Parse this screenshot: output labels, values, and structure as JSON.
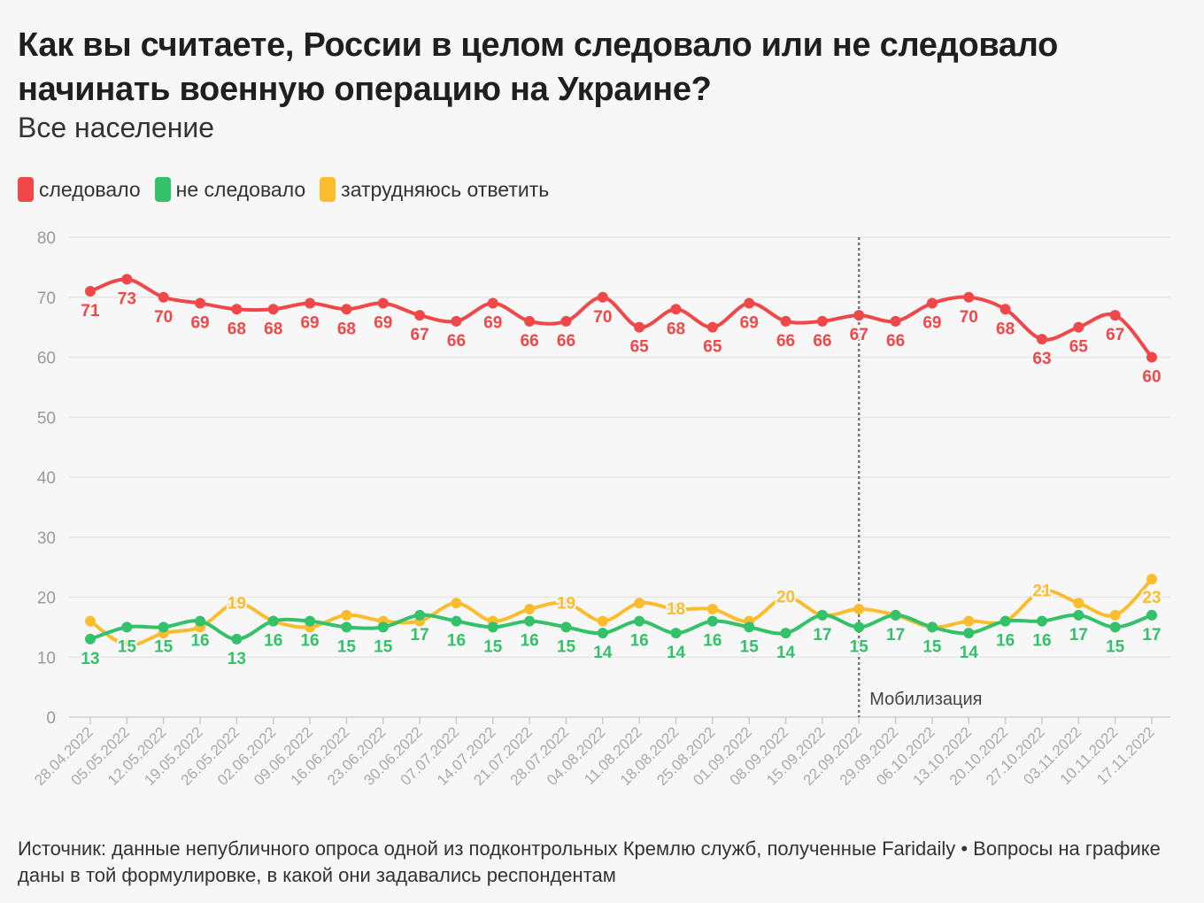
{
  "title": "Как вы считаете, России в целом следовало или не следовало начинать военную операцию на Украине?",
  "subtitle": "Все население",
  "legend": [
    {
      "label": "следовало",
      "color": "#f04848"
    },
    {
      "label": "не следовало",
      "color": "#33c16a"
    },
    {
      "label": "затрудняюсь ответить",
      "color": "#fbbd2e"
    }
  ],
  "footer": "Источник: данные непубличного опроса одной из подконтрольных Кремлю служб, полученные Faridaily • Вопросы на графике даны в той формулировке, в какой они задавались респондентам",
  "chart_data": {
    "type": "line",
    "title": "Как вы считаете, России в целом следовало или не следовало начинать военную операцию на Украине?",
    "subtitle": "Все население",
    "ylim": [
      0,
      80
    ],
    "yticks": [
      0,
      10,
      20,
      30,
      40,
      50,
      60,
      70,
      80
    ],
    "grid": true,
    "legend_position": "top-left",
    "x": [
      "28.04.2022",
      "05.05.2022",
      "12.05.2022",
      "19.05.2022",
      "26.05.2022",
      "02.06.2022",
      "09.06.2022",
      "16.06.2022",
      "23.06.2022",
      "30.06.2022",
      "07.07.2022",
      "14.07.2022",
      "21.07.2022",
      "28.07.2022",
      "04.08.2022",
      "11.08.2022",
      "18.08.2022",
      "25.08.2022",
      "01.09.2022",
      "08.09.2022",
      "15.09.2022",
      "22.09.2022",
      "29.09.2022",
      "06.10.2022",
      "13.10.2022",
      "20.10.2022",
      "27.10.2022",
      "03.11.2022",
      "10.11.2022",
      "17.11.2022"
    ],
    "series": [
      {
        "name": "следовало",
        "color": "#f04848",
        "values": [
          71,
          73,
          70,
          69,
          68,
          68,
          69,
          68,
          69,
          67,
          66,
          69,
          66,
          66,
          70,
          65,
          68,
          65,
          69,
          66,
          66,
          67,
          66,
          69,
          70,
          68,
          63,
          65,
          67,
          60
        ],
        "labeled": [
          0,
          1,
          2,
          3,
          4,
          5,
          6,
          7,
          8,
          9,
          10,
          11,
          12,
          13,
          14,
          15,
          16,
          17,
          18,
          19,
          20,
          21,
          22,
          23,
          24,
          25,
          26,
          27,
          28,
          29
        ]
      },
      {
        "name": "не следовало",
        "color": "#33c16a",
        "values": [
          13,
          15,
          15,
          16,
          13,
          16,
          16,
          15,
          15,
          17,
          16,
          15,
          16,
          15,
          14,
          16,
          14,
          16,
          15,
          14,
          17,
          15,
          17,
          15,
          14,
          16,
          16,
          17,
          15,
          17
        ],
        "labeled": [
          0,
          1,
          2,
          3,
          4,
          5,
          6,
          7,
          8,
          9,
          10,
          11,
          12,
          13,
          14,
          15,
          16,
          17,
          18,
          19,
          20,
          21,
          22,
          23,
          24,
          25,
          26,
          27,
          28,
          29
        ]
      },
      {
        "name": "затрудняюсь ответить",
        "color": "#fbbd2e",
        "values": [
          16,
          12,
          14,
          15,
          19,
          16,
          15,
          17,
          16,
          16,
          19,
          16,
          18,
          19,
          16,
          19,
          18,
          18,
          16,
          20,
          17,
          18,
          17,
          15,
          16,
          16,
          21,
          19,
          17,
          23
        ],
        "labeled": [
          4,
          13,
          16,
          19,
          26,
          29
        ]
      }
    ],
    "annotations": [
      {
        "x": "22.09.2022",
        "text": "Мобилизация",
        "style": "dotted-vertical-line"
      }
    ]
  }
}
